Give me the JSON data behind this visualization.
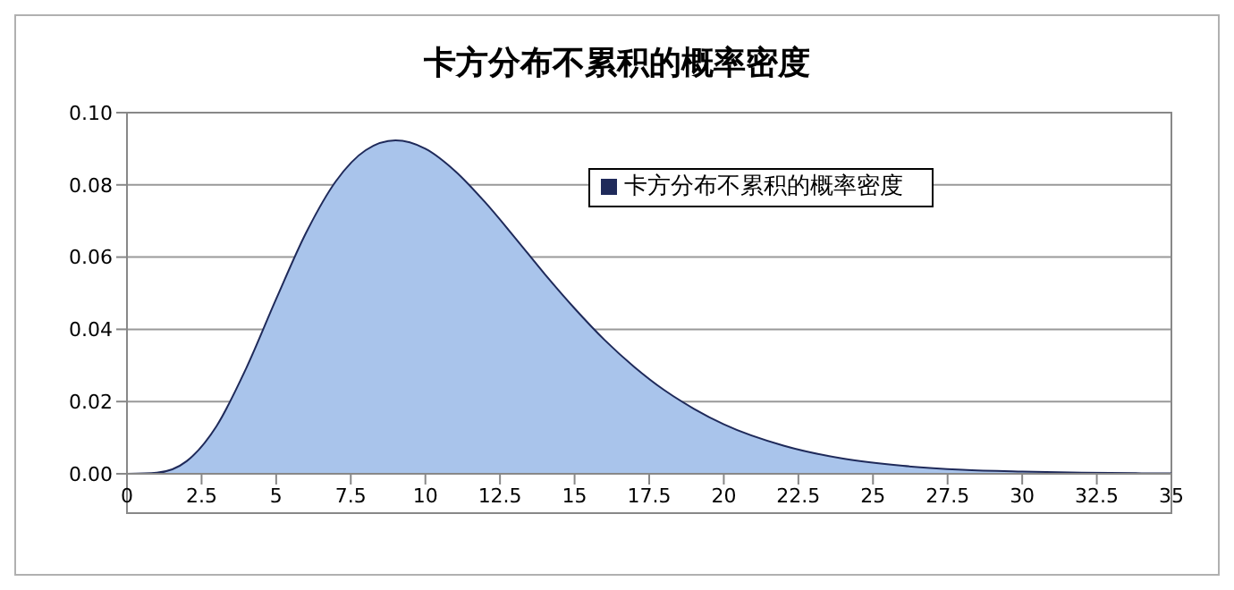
{
  "chart_data": {
    "type": "area",
    "title": "卡方分布不累积的概率密度",
    "x": [
      0,
      1,
      2,
      3,
      4,
      5,
      6,
      7,
      8,
      9,
      10,
      11,
      12,
      13,
      14,
      15,
      16,
      17,
      18,
      19,
      20,
      22,
      24,
      26,
      28,
      30,
      32,
      35
    ],
    "series": [
      {
        "name": "卡方分布不累积的概率密度",
        "color": "#a9c4eb",
        "values": [
          0,
          0.0003,
          0.0035,
          0.0132,
          0.0293,
          0.0484,
          0.0667,
          0.081,
          0.0896,
          0.0923,
          0.09,
          0.0838,
          0.0752,
          0.0654,
          0.0553,
          0.0458,
          0.0371,
          0.0296,
          0.0232,
          0.018,
          0.0137,
          0.0078,
          0.0042,
          0.0022,
          0.0011,
          0.0006,
          0.0003,
          0.0001
        ]
      }
    ],
    "xlim": [
      0,
      35
    ],
    "xticks": [
      0,
      2.5,
      5,
      7.5,
      10,
      12.5,
      15,
      17.5,
      20,
      22.5,
      25,
      27.5,
      30,
      32.5,
      35
    ],
    "ylim": [
      0,
      0.1
    ],
    "yticks": [
      {
        "value": 0,
        "label": "0.00"
      },
      {
        "value": 0.02,
        "label": "0.02"
      },
      {
        "value": 0.04,
        "label": "0.04"
      },
      {
        "value": 0.06,
        "label": "0.06"
      },
      {
        "value": 0.08,
        "label": "0.08"
      },
      {
        "value": 0.1,
        "label": "0.10"
      }
    ],
    "grid": "y",
    "legend": "top right"
  }
}
